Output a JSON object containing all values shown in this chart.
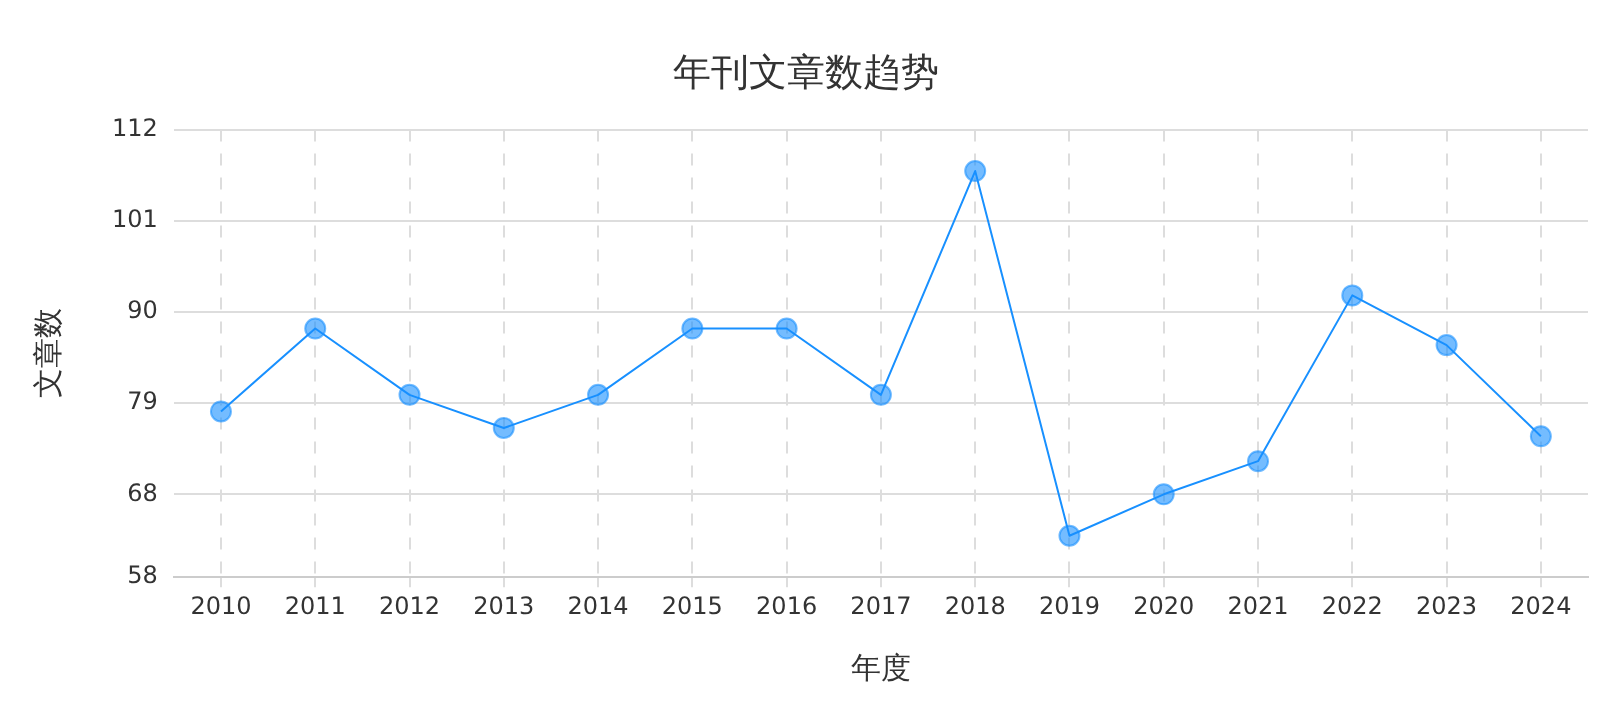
{
  "chart_data": {
    "type": "line",
    "title": "年刊文章数趋势",
    "xlabel": "年度",
    "ylabel": "文章数",
    "categories": [
      "2010",
      "2011",
      "2012",
      "2013",
      "2014",
      "2015",
      "2016",
      "2017",
      "2018",
      "2019",
      "2020",
      "2021",
      "2022",
      "2023",
      "2024"
    ],
    "series": [
      {
        "color": "#1890ff",
        "values": [
          78,
          88,
          80,
          76,
          80,
          88,
          88,
          80,
          107,
          63,
          68,
          72,
          92,
          86,
          75
        ]
      }
    ],
    "ylim": [
      58,
      112
    ],
    "yticks": [
      58,
      68,
      79,
      90,
      101,
      112
    ],
    "grid": true,
    "marker": "circle",
    "line_style": "solid"
  }
}
